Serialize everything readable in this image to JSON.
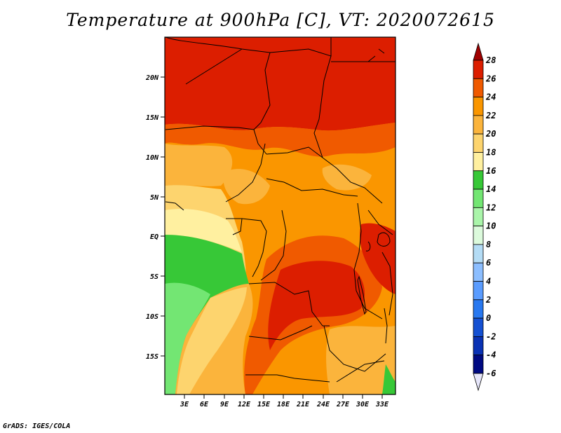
{
  "title": "Temperature at 900hPa [C], VT: 2020072615",
  "footer": "GrADS: IGES/COLA",
  "map": {
    "lat_labels": [
      "20N",
      "15N",
      "10N",
      "5N",
      "EQ",
      "5S",
      "10S",
      "15S"
    ],
    "lon_labels": [
      "3E",
      "6E",
      "9E",
      "12E",
      "15E",
      "18E",
      "21E",
      "24E",
      "27E",
      "30E",
      "33E"
    ]
  },
  "colorbar": {
    "labels": [
      "28",
      "26",
      "24",
      "22",
      "20",
      "18",
      "16",
      "14",
      "12",
      "10",
      "8",
      "6",
      "4",
      "2",
      "0",
      "-2",
      "-4",
      "-6"
    ],
    "colors": [
      "#a00000",
      "#dc1e00",
      "#f05a00",
      "#fa9600",
      "#fbb43c",
      "#fdd46e",
      "#fff0a0",
      "#37c837",
      "#73e673",
      "#aaf5aa",
      "#dcfadc",
      "#b4dcf5",
      "#8cbeff",
      "#5a9cff",
      "#2878f0",
      "#1450d2",
      "#0a32b4",
      "#000a82",
      "#e6e6fa"
    ]
  },
  "legend_colors": {
    "hot": "#dc1e00",
    "warm": "#f05a00",
    "orange": "#fa9600",
    "light_orange": "#fbb43c",
    "yellow": "#fdd46e",
    "pale": "#fff0a0",
    "green": "#37c837",
    "light_green": "#73e673"
  }
}
